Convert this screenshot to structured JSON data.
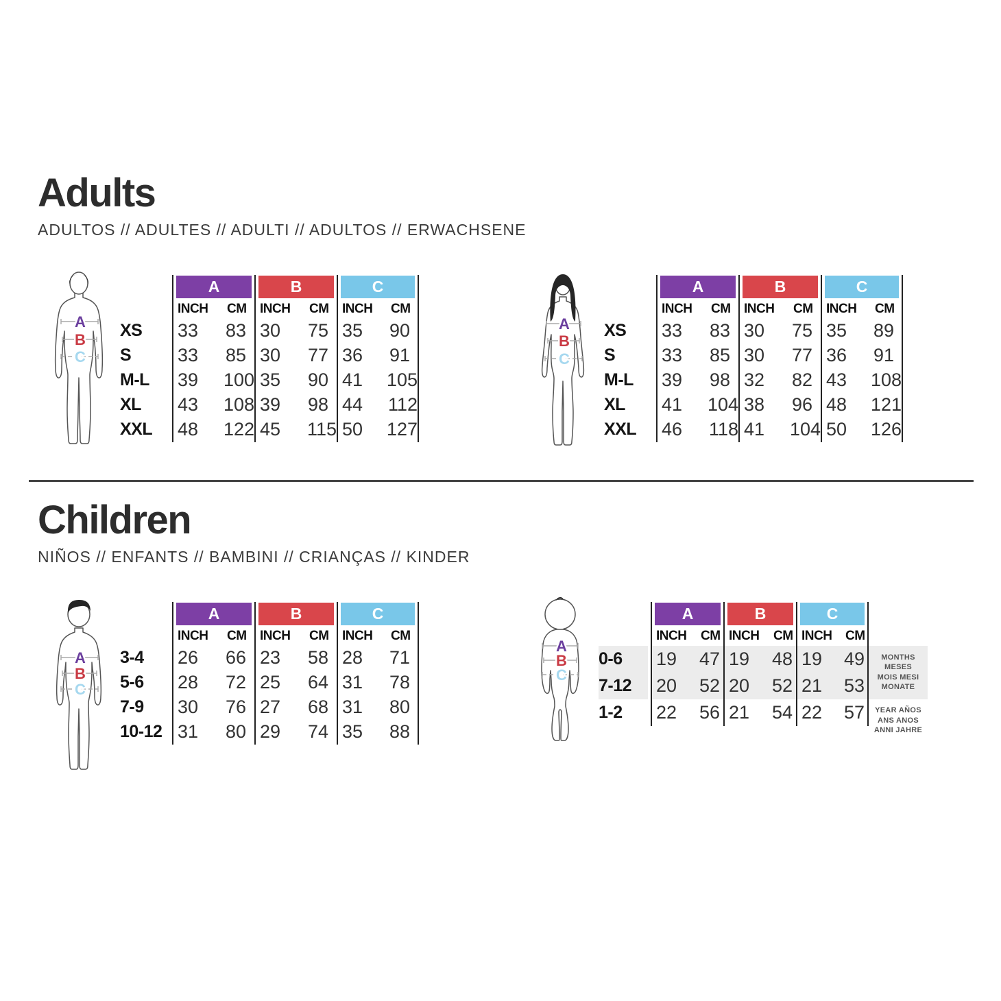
{
  "columns": {
    "groups": [
      {
        "label": "A",
        "color": "#7d3fa5"
      },
      {
        "label": "B",
        "color": "#d9464b"
      },
      {
        "label": "C",
        "color": "#79c7e9"
      }
    ],
    "unit_labels": [
      "INCH",
      "CM"
    ]
  },
  "figure_marks": [
    {
      "label": "A",
      "color": "#6b3f9e"
    },
    {
      "label": "B",
      "color": "#c93a44"
    },
    {
      "label": "C",
      "color": "#a6d8ef"
    }
  ],
  "adults_section": {
    "title": "Adults",
    "subtitle": "ADULTOS // ADULTES // ADULTI // ADULTOS // ERWACHSENE",
    "tables": [
      {
        "figure": "male",
        "rows": [
          {
            "label": "XS",
            "values": [
              "33",
              "83",
              "30",
              "75",
              "35",
              "90"
            ]
          },
          {
            "label": "S",
            "values": [
              "33",
              "85",
              "30",
              "77",
              "36",
              "91"
            ]
          },
          {
            "label": "M-L",
            "values": [
              "39",
              "100",
              "35",
              "90",
              "41",
              "105"
            ]
          },
          {
            "label": "XL",
            "values": [
              "43",
              "108",
              "39",
              "98",
              "44",
              "112"
            ]
          },
          {
            "label": "XXL",
            "values": [
              "48",
              "122",
              "45",
              "115",
              "50",
              "127"
            ]
          }
        ]
      },
      {
        "figure": "female",
        "rows": [
          {
            "label": "XS",
            "values": [
              "33",
              "83",
              "30",
              "75",
              "35",
              "89"
            ]
          },
          {
            "label": "S",
            "values": [
              "33",
              "85",
              "30",
              "77",
              "36",
              "91"
            ]
          },
          {
            "label": "M-L",
            "values": [
              "39",
              "98",
              "32",
              "82",
              "43",
              "108"
            ]
          },
          {
            "label": "XL",
            "values": [
              "41",
              "104",
              "38",
              "96",
              "48",
              "121"
            ]
          },
          {
            "label": "XXL",
            "values": [
              "46",
              "118",
              "41",
              "104",
              "50",
              "126"
            ]
          }
        ]
      }
    ]
  },
  "children_section": {
    "title": "Children",
    "subtitle": "NIÑOS // ENFANTS // BAMBINI // CRIANÇAS // KINDER",
    "tables": [
      {
        "figure": "child",
        "rows": [
          {
            "label": "3-4",
            "values": [
              "26",
              "66",
              "23",
              "58",
              "28",
              "71"
            ]
          },
          {
            "label": "5-6",
            "values": [
              "28",
              "72",
              "25",
              "64",
              "31",
              "78"
            ]
          },
          {
            "label": "7-9",
            "values": [
              "30",
              "76",
              "27",
              "68",
              "31",
              "80"
            ]
          },
          {
            "label": "10-12",
            "values": [
              "31",
              "80",
              "29",
              "74",
              "35",
              "88"
            ]
          }
        ]
      },
      {
        "figure": "baby",
        "rows": [
          {
            "label": "0-6",
            "values": [
              "19",
              "47",
              "19",
              "48",
              "19",
              "49"
            ],
            "shaded": true
          },
          {
            "label": "7-12",
            "values": [
              "20",
              "52",
              "20",
              "52",
              "21",
              "53"
            ],
            "shaded": true
          },
          {
            "label": "1-2",
            "values": [
              "22",
              "56",
              "21",
              "54",
              "22",
              "57"
            ],
            "shaded": false
          }
        ],
        "notes": [
          {
            "shaded": true,
            "lines": [
              "MONTHS",
              "MESES",
              "MOIS MESI",
              "MONATE"
            ]
          },
          {
            "shaded": false,
            "lines": [
              "YEAR AÑOS",
              "ANS ANOS",
              "ANNI JAHRE"
            ]
          }
        ]
      }
    ]
  }
}
